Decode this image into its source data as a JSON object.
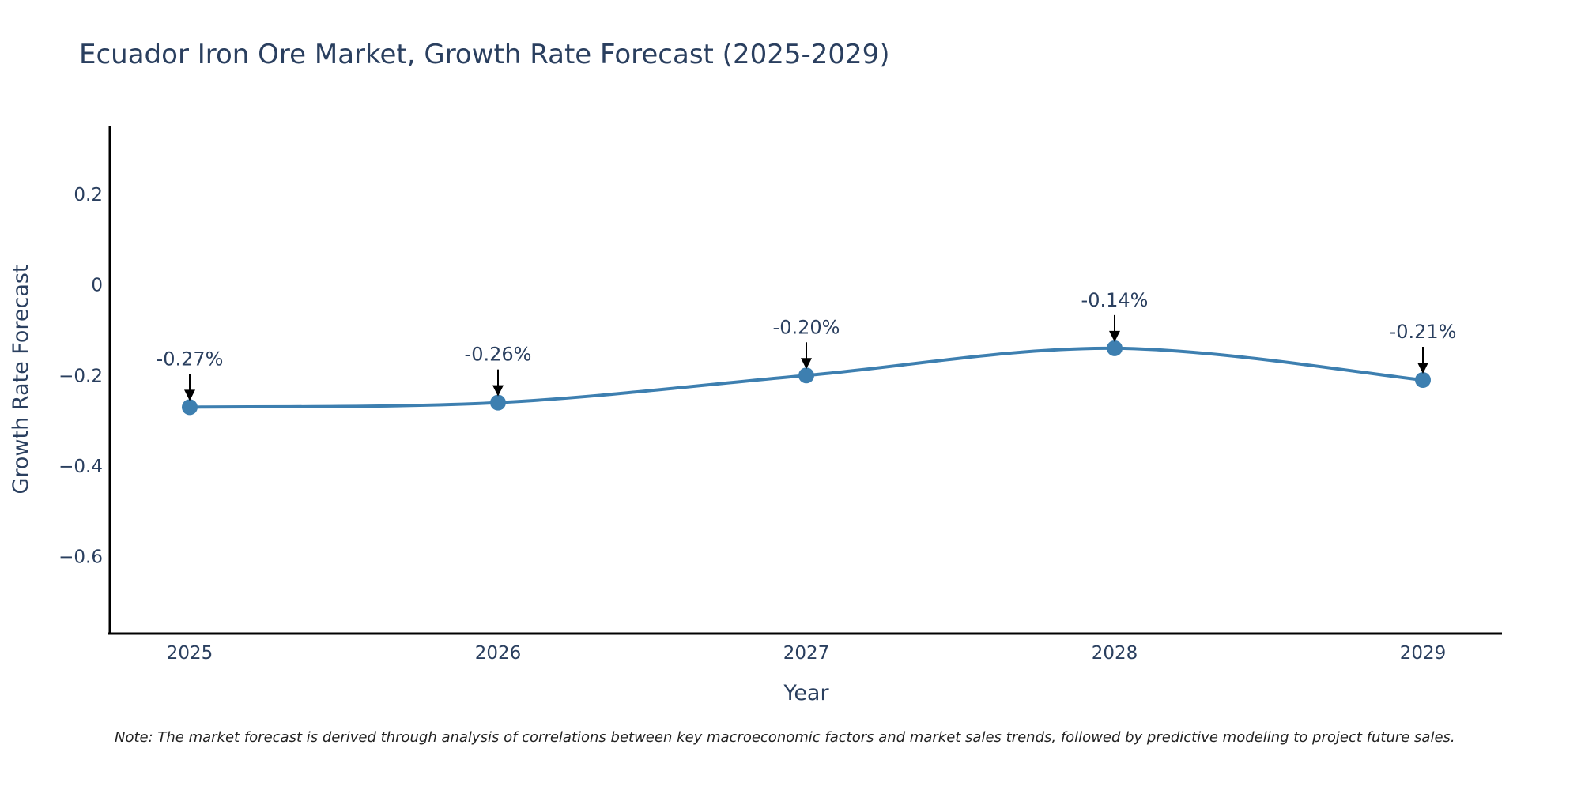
{
  "chart_data": {
    "type": "line",
    "title": "Ecuador Iron Ore Market, Growth Rate Forecast (2025-2029)",
    "xlabel": "Year",
    "ylabel": "Growth Rate Forecast",
    "categories": [
      "2025",
      "2026",
      "2027",
      "2028",
      "2029"
    ],
    "series": [
      {
        "name": "Growth Rate Forecast",
        "values": [
          -0.27,
          -0.26,
          -0.2,
          -0.14,
          -0.21
        ],
        "color": "#3d7fb0"
      }
    ],
    "annotations": [
      "-0.27%",
      "-0.26%",
      "-0.20%",
      "-0.14%",
      "-0.21%"
    ],
    "ylim": [
      -0.77,
      0.35
    ],
    "yticks": [
      0.2,
      0,
      -0.2,
      -0.4,
      -0.6
    ],
    "ytick_labels": [
      "0.2",
      "0",
      "−0.2",
      "−0.4",
      "−0.6"
    ],
    "grid": false,
    "note": "Note: The market forecast is derived through analysis of correlations between key macroeconomic factors and market sales trends, followed by predictive modeling to project future sales."
  },
  "colors": {
    "line": "#3d7fb0",
    "text": "#2a3f5f",
    "axis": "#000000",
    "arrow": "#000000"
  }
}
